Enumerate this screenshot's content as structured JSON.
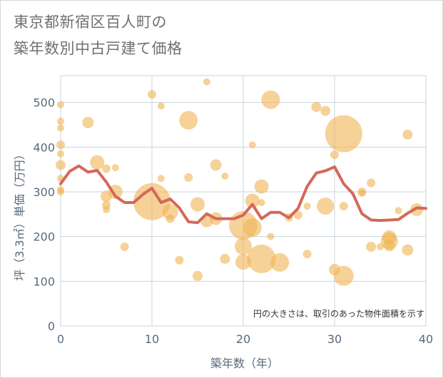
{
  "title_lines": [
    "東京都新宿区百人町の",
    "築年数別中古戸建て価格"
  ],
  "chart_data": {
    "type": "scatter",
    "title": "東京都新宿区百人町の築年数別中古戸建て価格",
    "xlabel": "築年数（年）",
    "ylabel": "坪（3.3㎡）単価（万円）",
    "xlim": [
      0,
      40
    ],
    "ylim": [
      0,
      560
    ],
    "xticks": [
      0,
      10,
      20,
      30,
      40
    ],
    "yticks": [
      0,
      100,
      200,
      300,
      400,
      500
    ],
    "grid": true,
    "annotation": "円の大きさは、取引のあった物件面積を示す",
    "colors": {
      "bubble": "#f0b454",
      "line": "#d4685a",
      "grid": "#c8d4de",
      "axis_text": "#5a6a7a"
    },
    "series": [
      {
        "type": "bubble",
        "points": [
          {
            "x": 0,
            "y": 495,
            "s": 5
          },
          {
            "x": 0,
            "y": 458,
            "s": 5
          },
          {
            "x": 0,
            "y": 443,
            "s": 5
          },
          {
            "x": 0,
            "y": 405,
            "s": 6
          },
          {
            "x": 0,
            "y": 385,
            "s": 5
          },
          {
            "x": 0,
            "y": 360,
            "s": 7
          },
          {
            "x": 0,
            "y": 330,
            "s": 5
          },
          {
            "x": 0,
            "y": 305,
            "s": 5
          },
          {
            "x": 0,
            "y": 300,
            "s": 5
          },
          {
            "x": 3,
            "y": 455,
            "s": 8
          },
          {
            "x": 4,
            "y": 366,
            "s": 10
          },
          {
            "x": 5,
            "y": 352,
            "s": 6
          },
          {
            "x": 5,
            "y": 290,
            "s": 8
          },
          {
            "x": 5,
            "y": 270,
            "s": 6
          },
          {
            "x": 5,
            "y": 260,
            "s": 5
          },
          {
            "x": 6,
            "y": 354,
            "s": 5
          },
          {
            "x": 6,
            "y": 300,
            "s": 10
          },
          {
            "x": 7,
            "y": 177,
            "s": 6
          },
          {
            "x": 10,
            "y": 518,
            "s": 6
          },
          {
            "x": 10,
            "y": 278,
            "s": 26
          },
          {
            "x": 11,
            "y": 492,
            "s": 5
          },
          {
            "x": 11,
            "y": 330,
            "s": 5
          },
          {
            "x": 12,
            "y": 255,
            "s": 11
          },
          {
            "x": 12,
            "y": 240,
            "s": 6
          },
          {
            "x": 13,
            "y": 147,
            "s": 6
          },
          {
            "x": 14,
            "y": 460,
            "s": 13
          },
          {
            "x": 14,
            "y": 332,
            "s": 6
          },
          {
            "x": 15,
            "y": 272,
            "s": 10
          },
          {
            "x": 15,
            "y": 112,
            "s": 7
          },
          {
            "x": 16,
            "y": 546,
            "s": 5
          },
          {
            "x": 16,
            "y": 235,
            "s": 9
          },
          {
            "x": 17,
            "y": 360,
            "s": 8
          },
          {
            "x": 17,
            "y": 240,
            "s": 9
          },
          {
            "x": 18,
            "y": 335,
            "s": 5
          },
          {
            "x": 18,
            "y": 150,
            "s": 7
          },
          {
            "x": 20,
            "y": 225,
            "s": 20
          },
          {
            "x": 20,
            "y": 178,
            "s": 12
          },
          {
            "x": 20,
            "y": 143,
            "s": 11
          },
          {
            "x": 21,
            "y": 405,
            "s": 5
          },
          {
            "x": 21,
            "y": 280,
            "s": 10
          },
          {
            "x": 21,
            "y": 220,
            "s": 13
          },
          {
            "x": 22,
            "y": 312,
            "s": 10
          },
          {
            "x": 22,
            "y": 276,
            "s": 5
          },
          {
            "x": 22,
            "y": 150,
            "s": 20
          },
          {
            "x": 23,
            "y": 506,
            "s": 13
          },
          {
            "x": 23,
            "y": 200,
            "s": 5
          },
          {
            "x": 24,
            "y": 142,
            "s": 13
          },
          {
            "x": 25,
            "y": 243,
            "s": 6
          },
          {
            "x": 26,
            "y": 248,
            "s": 6
          },
          {
            "x": 27,
            "y": 268,
            "s": 5
          },
          {
            "x": 27,
            "y": 161,
            "s": 6
          },
          {
            "x": 28,
            "y": 490,
            "s": 7
          },
          {
            "x": 29,
            "y": 481,
            "s": 7
          },
          {
            "x": 29,
            "y": 268,
            "s": 12
          },
          {
            "x": 30,
            "y": 383,
            "s": 6
          },
          {
            "x": 30,
            "y": 126,
            "s": 8
          },
          {
            "x": 31,
            "y": 430,
            "s": 26
          },
          {
            "x": 31,
            "y": 268,
            "s": 6
          },
          {
            "x": 31,
            "y": 112,
            "s": 14
          },
          {
            "x": 33,
            "y": 300,
            "s": 6
          },
          {
            "x": 33,
            "y": 297,
            "s": 5
          },
          {
            "x": 34,
            "y": 320,
            "s": 6
          },
          {
            "x": 34,
            "y": 177,
            "s": 7
          },
          {
            "x": 35,
            "y": 177,
            "s": 5
          },
          {
            "x": 36,
            "y": 198,
            "s": 10
          },
          {
            "x": 36,
            "y": 190,
            "s": 12
          },
          {
            "x": 36,
            "y": 180,
            "s": 8
          },
          {
            "x": 37,
            "y": 258,
            "s": 5
          },
          {
            "x": 38,
            "y": 428,
            "s": 7
          },
          {
            "x": 38,
            "y": 170,
            "s": 8
          },
          {
            "x": 39,
            "y": 260,
            "s": 9
          }
        ]
      },
      {
        "type": "line",
        "x": [
          0,
          1,
          2,
          3,
          4,
          5,
          6,
          7,
          8,
          9,
          10,
          11,
          12,
          13,
          14,
          15,
          16,
          17,
          18,
          19,
          20,
          21,
          22,
          23,
          24,
          25,
          26,
          27,
          28,
          29,
          30,
          31,
          32,
          33,
          34,
          35,
          36,
          37,
          38,
          39,
          40
        ],
        "y": [
          318,
          346,
          358,
          344,
          348,
          322,
          290,
          276,
          276,
          294,
          308,
          276,
          284,
          264,
          233,
          231,
          251,
          240,
          240,
          240,
          248,
          272,
          240,
          254,
          254,
          242,
          263,
          312,
          342,
          347,
          356,
          318,
          296,
          251,
          237,
          236,
          237,
          238,
          252,
          264,
          263
        ]
      }
    ]
  }
}
